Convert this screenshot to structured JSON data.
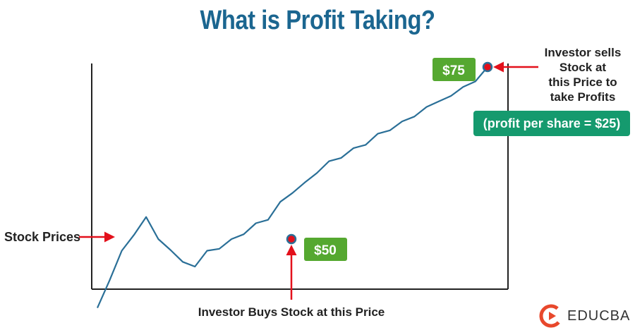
{
  "title": "What is Profit Taking?",
  "logo_text": "EDUCBA",
  "colors": {
    "title": "#1b6690",
    "line": "#2a6f97",
    "arrow": "#e3101b",
    "price_badge": "#55a830",
    "profit_badge": "#159a6e",
    "axis": "#222222"
  },
  "chart_data": {
    "type": "line",
    "series": [
      {
        "values": [
          40,
          44,
          48,
          51,
          53,
          50,
          48,
          47,
          46,
          48,
          49,
          50,
          51,
          52,
          53,
          55,
          57,
          58,
          60,
          61,
          62,
          63,
          64,
          65,
          66,
          67,
          68,
          69,
          70,
          71,
          72,
          73,
          75
        ]
      }
    ],
    "ylim": [
      35,
      80
    ],
    "grid": false,
    "buy_price": 50,
    "sell_price": 75
  },
  "annotations": {
    "stock_prices": "Stock Prices",
    "buy_text": "Investor Buys Stock at this Price",
    "buy_badge": "$50",
    "sell_badge": "$75",
    "sell_text_lines": [
      "Investor sells",
      "Stock at",
      "this Price to",
      "take Profits"
    ],
    "profit_text": "(profit per share = $25)"
  }
}
